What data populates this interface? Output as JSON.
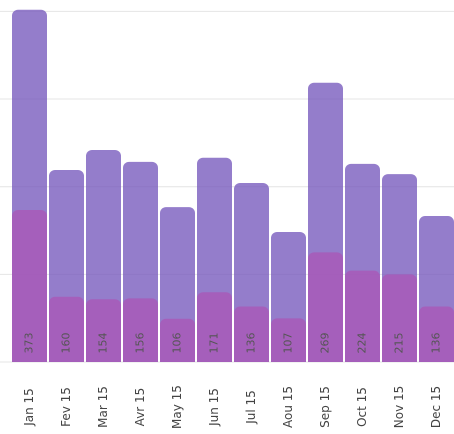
{
  "chart_data": {
    "type": "bar",
    "categories": [
      "Jan 15",
      "Fev 15",
      "Mar 15",
      "Avr 15",
      "May 15",
      "Jun 15",
      "Jul 15",
      "Aou 15",
      "Sep 15",
      "Oct 15",
      "Nov 15",
      "Dec 15"
    ],
    "series": [
      {
        "color": "rgba(118, 88, 188, 0.78)",
        "values": [
          864,
          471,
          520,
          491,
          380,
          501,
          439,
          319,
          685,
          486,
          461,
          358
        ]
      },
      {
        "color": "rgba(176, 78, 178, 0.62)",
        "values": [
          373,
          160,
          154,
          156,
          106,
          171,
          136,
          107,
          269,
          224,
          215,
          136
        ]
      }
    ],
    "label_series": 1,
    "ylim": [
      0,
      888
    ],
    "yticks": [
      0,
      215,
      430,
      645,
      860
    ],
    "grid": true
  }
}
